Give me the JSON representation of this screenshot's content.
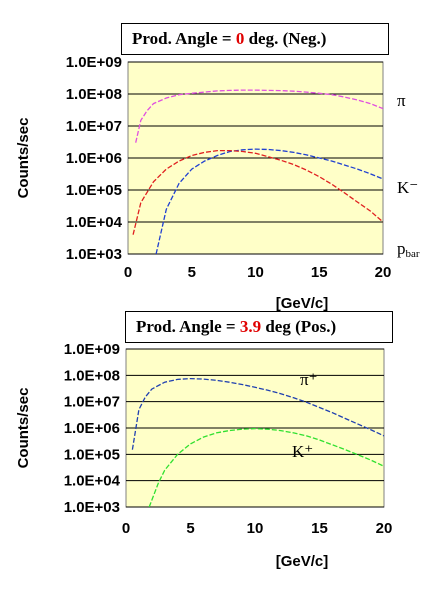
{
  "chart_data": [
    {
      "type": "line",
      "title": {
        "prefix": "Prod. Angle = ",
        "highlight": "0",
        "suffix": " deg. (Neg.)",
        "highlight_color": "#e00000"
      },
      "ylabel": "Counts/sec",
      "xlabel": "[GeV/c]",
      "y_scale": "log",
      "ylim": [
        1000,
        1000000000
      ],
      "xlim": [
        0,
        20
      ],
      "xticks": [
        "0",
        "5",
        "10",
        "15",
        "20"
      ],
      "yticks": [
        "1.0E+09",
        "1.0E+08",
        "1.0E+07",
        "1.0E+06",
        "1.0E+05",
        "1.0E+04",
        "1.0E+03"
      ],
      "grid": "horizontal",
      "background": "#ffffc8",
      "series": [
        {
          "name": "π",
          "color": "#e050e0",
          "x": [
            0.6,
            1,
            1.5,
            2,
            3,
            4,
            5,
            6,
            7,
            8,
            9,
            10,
            11,
            12,
            13,
            14,
            15,
            16,
            17,
            18,
            19,
            20
          ],
          "y": [
            3000000,
            15000000,
            30000000,
            50000000,
            75000000,
            95000000,
            105000000,
            115000000,
            125000000,
            130000000,
            132000000,
            132000000,
            130000000,
            128000000,
            122000000,
            115000000,
            105000000,
            95000000,
            80000000,
            65000000,
            50000000,
            35000000
          ]
        },
        {
          "name": "K⁻",
          "color": "#2040d0",
          "x": [
            2.2,
            3,
            4,
            5,
            6,
            7,
            8,
            9,
            10,
            11,
            12,
            13,
            14,
            15,
            16,
            17,
            18,
            19,
            20
          ],
          "y": [
            1000,
            25000,
            160000,
            450000,
            800000,
            1200000,
            1600000,
            1800000,
            1900000,
            1850000,
            1700000,
            1500000,
            1250000,
            1000000,
            800000,
            600000,
            450000,
            320000,
            220000
          ]
        },
        {
          "name": "p_bar",
          "color": "#e02020",
          "x": [
            0.4,
            1,
            2,
            3,
            4,
            5,
            6,
            7,
            8,
            9,
            10,
            11,
            12,
            13,
            14,
            15,
            16,
            17,
            18,
            19,
            20
          ],
          "y": [
            4000,
            40000,
            180000,
            450000,
            800000,
            1200000,
            1500000,
            1700000,
            1700000,
            1600000,
            1400000,
            1100000,
            850000,
            620000,
            420000,
            260000,
            150000,
            80000,
            42000,
            22000,
            10000
          ]
        }
      ]
    },
    {
      "type": "line",
      "title": {
        "prefix": "Prod. Angle = ",
        "highlight": "3.9",
        "suffix": " deg (Pos.)",
        "highlight_color": "#e00000"
      },
      "ylabel": "Counts/sec",
      "xlabel": "[GeV/c]",
      "y_scale": "log",
      "ylim": [
        1000,
        1000000000
      ],
      "xlim": [
        0,
        20
      ],
      "xticks": [
        "0",
        "5",
        "10",
        "15",
        "20"
      ],
      "yticks": [
        "1.0E+09",
        "1.0E+08",
        "1.0E+07",
        "1.0E+06",
        "1.0E+05",
        "1.0E+04",
        "1.0E+03"
      ],
      "grid": "horizontal",
      "background": "#ffffc8",
      "series": [
        {
          "name": "π⁺",
          "color": "#2040b0",
          "x": [
            0.5,
            1,
            1.5,
            2,
            3,
            4,
            5,
            6,
            7,
            8,
            9,
            10,
            11,
            12,
            13,
            14,
            15,
            16,
            17,
            18,
            19,
            20
          ],
          "y": [
            150000,
            5000000,
            15000000,
            30000000,
            55000000,
            70000000,
            75000000,
            72000000,
            65000000,
            55000000,
            45000000,
            35000000,
            27000000,
            20000000,
            14000000,
            9500000,
            6000000,
            3800000,
            2300000,
            1400000,
            850000,
            500000
          ]
        },
        {
          "name": "K⁺",
          "color": "#30e030",
          "x": [
            1.8,
            2.5,
            3,
            4,
            5,
            6,
            7,
            8,
            9,
            10,
            11,
            12,
            13,
            14,
            15,
            16,
            17,
            18,
            19,
            20
          ],
          "y": [
            1000,
            8000,
            25000,
            100000,
            250000,
            450000,
            650000,
            800000,
            900000,
            950000,
            900000,
            800000,
            650000,
            500000,
            350000,
            230000,
            150000,
            95000,
            60000,
            35000
          ]
        }
      ]
    }
  ]
}
